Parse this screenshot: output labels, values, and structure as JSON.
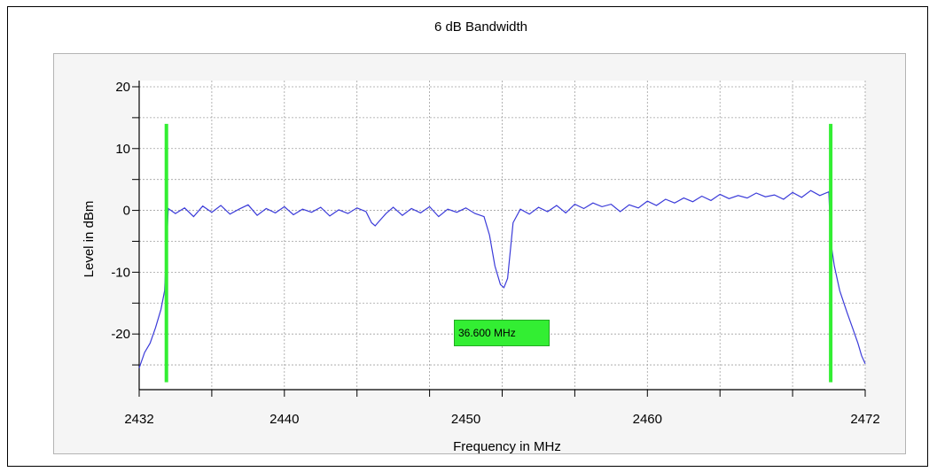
{
  "chart_data": {
    "type": "line",
    "title": "6 dB Bandwidth",
    "xlabel": "Frequency in MHz",
    "ylabel": "Level in dBm",
    "xlim": [
      2432,
      2472
    ],
    "ylim": [
      -29,
      21
    ],
    "xticks": [
      2432,
      2440,
      2450,
      2460,
      2472
    ],
    "yticks": [
      20,
      10,
      0,
      -10,
      -20
    ],
    "grid": true,
    "colors": {
      "trace": "#3b3bd9",
      "markers": "#33ee33",
      "grid": "#a0a0a0"
    },
    "markers": [
      2433.5,
      2470.1
    ],
    "bandwidth_label": "36.600 MHz",
    "series": [
      {
        "x": [
          2432.0,
          2432.3,
          2432.6,
          2432.9,
          2433.2,
          2433.4,
          2433.6,
          2434.0,
          2434.5,
          2435.0,
          2435.5,
          2436.0,
          2436.5,
          2437.0,
          2437.5,
          2438.0,
          2438.5,
          2439.0,
          2439.5,
          2440.0,
          2440.5,
          2441.0,
          2441.5,
          2442.0,
          2442.5,
          2443.0,
          2443.5,
          2444.0,
          2444.5,
          2444.8,
          2445.0,
          2445.3,
          2445.6,
          2446.0,
          2446.5,
          2447.0,
          2447.5,
          2448.0,
          2448.5,
          2449.0,
          2449.5,
          2450.0,
          2450.5,
          2451.0,
          2451.3,
          2451.6,
          2451.9,
          2452.1,
          2452.3,
          2452.6,
          2453.0,
          2453.5,
          2454.0,
          2454.5,
          2455.0,
          2455.5,
          2456.0,
          2456.5,
          2457.0,
          2457.5,
          2458.0,
          2458.5,
          2459.0,
          2459.5,
          2460.0,
          2460.5,
          2461.0,
          2461.5,
          2462.0,
          2462.5,
          2463.0,
          2463.5,
          2464.0,
          2464.5,
          2465.0,
          2465.5,
          2466.0,
          2466.5,
          2467.0,
          2467.5,
          2468.0,
          2468.5,
          2469.0,
          2469.5,
          2470.0,
          2470.1,
          2470.3,
          2470.6,
          2471.0,
          2471.3,
          2471.6,
          2471.8,
          2472.0
        ],
        "y": [
          -25.5,
          -23.0,
          -21.5,
          -19.0,
          -16.0,
          -13.0,
          0.3,
          -0.5,
          0.4,
          -1.0,
          0.7,
          -0.3,
          0.8,
          -0.6,
          0.2,
          0.9,
          -0.8,
          0.3,
          -0.4,
          0.6,
          -0.7,
          0.2,
          -0.3,
          0.5,
          -0.9,
          0.1,
          -0.5,
          0.4,
          -0.2,
          -2.0,
          -2.5,
          -1.5,
          -0.5,
          0.5,
          -0.8,
          0.3,
          -0.4,
          0.6,
          -1.0,
          0.2,
          -0.3,
          0.4,
          -0.5,
          -1.0,
          -4.0,
          -9.0,
          -12.0,
          -12.5,
          -11.0,
          -2.0,
          0.2,
          -0.6,
          0.5,
          -0.2,
          0.8,
          -0.4,
          1.0,
          0.3,
          1.2,
          0.6,
          1.0,
          -0.2,
          0.9,
          0.4,
          1.5,
          0.8,
          1.8,
          1.2,
          2.0,
          1.4,
          2.3,
          1.6,
          2.6,
          1.9,
          2.4,
          2.0,
          2.8,
          2.2,
          2.5,
          1.8,
          2.9,
          2.1,
          3.2,
          2.4,
          3.0,
          -5.0,
          -9.0,
          -13.0,
          -16.5,
          -19.0,
          -21.5,
          -23.5,
          -24.8
        ]
      }
    ]
  }
}
